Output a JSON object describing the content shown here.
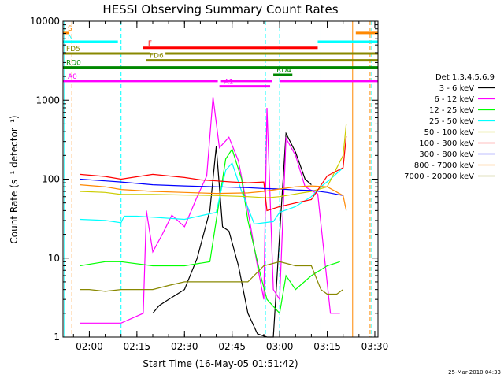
{
  "chart_data": {
    "type": "line",
    "title": "HESSI Observing Summary Count Rates",
    "xlabel": "Start Time (16-May-05 01:51:42)",
    "ylabel": "Count Rate (s⁻¹ detector⁻¹)",
    "y_scale": "log",
    "ylim": [
      1,
      10000
    ],
    "xlim": [
      "01:51:42",
      "03:31:00"
    ],
    "x_ticks": [
      "02:00",
      "02:15",
      "02:30",
      "02:45",
      "03:00",
      "03:15",
      "03:30"
    ],
    "y_ticks": [
      "1",
      "10",
      "100",
      "1000",
      "10000"
    ],
    "legend_position": "right",
    "legend_title": "Det 1,3,4,5,6,9",
    "timestamp": "25-Mar-2010 04:33",
    "series": [
      {
        "name": "3 - 6 keV",
        "color": "#000000",
        "x": [
          "02:20",
          "02:22",
          "02:25",
          "02:30",
          "02:34",
          "02:38",
          "02:40",
          "02:42",
          "02:44",
          "02:47",
          "02:50",
          "02:53",
          "02:56",
          "02:58",
          "03:00",
          "03:02",
          "03:05",
          "03:08",
          "03:10"
        ],
        "y": [
          2,
          2.5,
          3,
          4,
          10,
          40,
          260,
          25,
          22,
          8,
          2,
          1.1,
          1,
          1,
          20,
          380,
          220,
          100,
          85
        ]
      },
      {
        "name": "6 - 12 keV",
        "color": "#ff00ff",
        "x": [
          "01:57",
          "02:00",
          "02:10",
          "02:17",
          "02:18",
          "02:20",
          "02:23",
          "02:26",
          "02:30",
          "02:34",
          "02:37",
          "02:39",
          "02:41",
          "02:44",
          "02:47",
          "02:50",
          "02:53",
          "02:55",
          "02:56",
          "02:58",
          "03:00",
          "03:02",
          "03:05",
          "03:08",
          "03:12",
          "03:16",
          "03:19"
        ],
        "y": [
          1.5,
          1.5,
          1.5,
          2,
          40,
          12,
          20,
          35,
          25,
          60,
          110,
          1100,
          250,
          340,
          170,
          40,
          8,
          3,
          800,
          4,
          3,
          330,
          200,
          80,
          65,
          2,
          2
        ]
      },
      {
        "name": "12 - 25 keV",
        "color": "#00ff00",
        "x": [
          "01:57",
          "02:05",
          "02:10",
          "02:20",
          "02:30",
          "02:38",
          "02:40",
          "02:43",
          "02:45",
          "02:48",
          "02:50",
          "02:54",
          "02:56",
          "03:00",
          "03:02",
          "03:05",
          "03:10",
          "03:15",
          "03:19"
        ],
        "y": [
          8,
          9,
          9,
          8,
          8,
          9,
          30,
          180,
          240,
          100,
          30,
          6,
          3,
          2,
          6,
          4,
          6,
          8,
          9
        ]
      },
      {
        "name": "25 - 50 keV",
        "color": "#00ffff",
        "x": [
          "01:57",
          "02:05",
          "02:10",
          "02:11",
          "02:15",
          "02:20",
          "02:30",
          "02:40",
          "02:43",
          "02:45",
          "02:48",
          "02:52",
          "02:55",
          "02:58",
          "03:00",
          "03:05",
          "03:10",
          "03:13",
          "03:16",
          "03:20"
        ],
        "y": [
          31,
          30,
          28,
          34,
          34,
          33,
          31,
          38,
          130,
          160,
          70,
          27,
          28,
          29,
          38,
          45,
          60,
          80,
          100,
          140
        ]
      },
      {
        "name": "50 - 100 keV",
        "color": "#cccc00",
        "x": [
          "01:57",
          "02:05",
          "02:10",
          "02:20",
          "02:30",
          "02:40",
          "02:50",
          "02:56",
          "03:00",
          "03:05",
          "03:10",
          "03:15",
          "03:20",
          "03:21"
        ],
        "y": [
          70,
          68,
          64,
          64,
          63,
          62,
          60,
          58,
          60,
          65,
          70,
          80,
          200,
          500
        ]
      },
      {
        "name": "100 - 300 keV",
        "color": "#ff0000",
        "x": [
          "01:57",
          "02:05",
          "02:10",
          "02:20",
          "02:30",
          "02:35",
          "02:40",
          "02:45",
          "02:50",
          "02:55",
          "02:56",
          "03:00",
          "03:05",
          "03:10",
          "03:15",
          "03:20",
          "03:21"
        ],
        "y": [
          115,
          108,
          100,
          115,
          105,
          98,
          95,
          92,
          90,
          92,
          40,
          45,
          50,
          55,
          110,
          140,
          350
        ]
      },
      {
        "name": "300 - 800 keV",
        "color": "#0000ff",
        "x": [
          "01:57",
          "02:05",
          "02:10",
          "02:20",
          "02:30",
          "02:40",
          "02:50",
          "02:55",
          "03:00",
          "03:05",
          "03:10",
          "03:15",
          "03:20"
        ],
        "y": [
          100,
          95,
          92,
          85,
          82,
          80,
          78,
          76,
          75,
          73,
          72,
          68,
          62
        ]
      },
      {
        "name": "800 - 7000 keV",
        "color": "#ff8800",
        "x": [
          "01:57",
          "02:05",
          "02:10",
          "02:20",
          "02:30",
          "02:40",
          "02:50",
          "02:55",
          "03:00",
          "03:05",
          "03:10",
          "03:15",
          "03:20",
          "03:21"
        ],
        "y": [
          85,
          80,
          74,
          70,
          68,
          66,
          67,
          70,
          75,
          80,
          82,
          80,
          62,
          40
        ]
      },
      {
        "name": "7000 - 20000 keV",
        "color": "#888800",
        "x": [
          "01:57",
          "02:00",
          "02:05",
          "02:10",
          "02:15",
          "02:20",
          "02:25",
          "02:30",
          "02:40",
          "02:50",
          "02:55",
          "03:00",
          "03:05",
          "03:10",
          "03:13",
          "03:15",
          "03:18",
          "03:20"
        ],
        "y": [
          4,
          4,
          3.8,
          4,
          4,
          4,
          4.5,
          5,
          5,
          5,
          8,
          9,
          8,
          8,
          4,
          3.5,
          3.5,
          4
        ]
      }
    ],
    "flag_bars": [
      {
        "label": "S",
        "color": "#ff8800",
        "start": "01:51:42",
        "end": "01:53:30",
        "level": 7100
      },
      {
        "label": "",
        "color": "#ff8800",
        "start": "03:24:00",
        "end": "03:31:00",
        "level": 7100
      },
      {
        "label": "N",
        "color": "#00ffff",
        "start": "01:51:42",
        "end": "02:09:00",
        "level": 5500
      },
      {
        "label": "",
        "color": "#00ffff",
        "start": "03:12:00",
        "end": "03:31:00",
        "level": 5500
      },
      {
        "label": "F",
        "color": "#ff0000",
        "start": "02:17:00",
        "end": "03:12:00",
        "level": 4600
      },
      {
        "label": "FD5",
        "color": "#888800",
        "start": "01:51:42",
        "end": "02:19:00",
        "level": 3900
      },
      {
        "label": "",
        "color": "#888800",
        "start": "02:24:00",
        "end": "03:31:00",
        "level": 3900
      },
      {
        "label": "FD6",
        "color": "#888800",
        "start": "02:18:00",
        "end": "03:31:00",
        "level": 3200
      },
      {
        "label": "RD0",
        "color": "#008800",
        "start": "01:51:42",
        "end": "03:31:00",
        "level": 2600
      },
      {
        "label": "RD4",
        "color": "#008800",
        "start": "02:58:00",
        "end": "03:04:00",
        "level": 2100
      },
      {
        "label": "A0",
        "color": "#ff00ff",
        "start": "01:51:42",
        "end": "02:40:30",
        "level": 1750
      },
      {
        "label": "",
        "color": "#ff00ff",
        "start": "02:41:30",
        "end": "02:57:30",
        "level": 1750
      },
      {
        "label": "",
        "color": "#ff00ff",
        "start": "03:00:00",
        "end": "03:31:00",
        "level": 1750
      },
      {
        "label": "A1",
        "color": "#ff00ff",
        "start": "02:41:00",
        "end": "02:57:00",
        "level": 1500
      }
    ],
    "vlines": [
      {
        "t": "01:52:10",
        "color": "#00ffff",
        "style": "solid"
      },
      {
        "t": "01:54:30",
        "color": "#ff8800",
        "style": "dashed"
      },
      {
        "t": "02:10:00",
        "color": "#00ffff",
        "style": "dashed"
      },
      {
        "t": "02:55:30",
        "color": "#00ffff",
        "style": "dashed"
      },
      {
        "t": "03:00:00",
        "color": "#00ffff",
        "style": "dashed"
      },
      {
        "t": "03:13:00",
        "color": "#00ffff",
        "style": "solid"
      },
      {
        "t": "03:23:00",
        "color": "#ff8800",
        "style": "solid"
      },
      {
        "t": "03:28:30",
        "color": "#ff8800",
        "style": "dashed"
      },
      {
        "t": "03:29:00",
        "color": "#00ffff",
        "style": "dashed"
      }
    ]
  }
}
